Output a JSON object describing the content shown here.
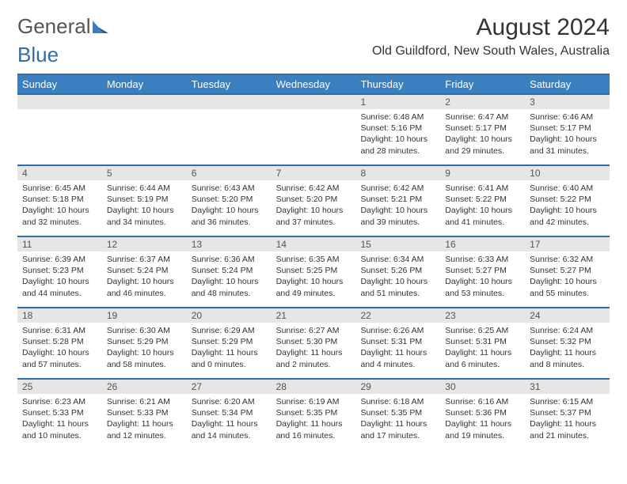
{
  "colors": {
    "accent": "#3a7fbf",
    "accent_dark": "#2f6fa8",
    "logo_gray": "#555555",
    "logo_blue": "#2f6fa8",
    "text": "#333333",
    "daynum_bg": "#e6e6e6",
    "daynum_text": "#555555",
    "bg": "#ffffff"
  },
  "logo": {
    "word1": "General",
    "word2": "Blue"
  },
  "header": {
    "month_title": "August 2024",
    "location": "Old Guildford, New South Wales, Australia"
  },
  "days_of_week": [
    "Sunday",
    "Monday",
    "Tuesday",
    "Wednesday",
    "Thursday",
    "Friday",
    "Saturday"
  ],
  "weeks": [
    [
      {
        "empty": true
      },
      {
        "empty": true
      },
      {
        "empty": true
      },
      {
        "empty": true
      },
      {
        "n": "1",
        "sunrise": "Sunrise: 6:48 AM",
        "sunset": "Sunset: 5:16 PM",
        "daylight": "Daylight: 10 hours and 28 minutes."
      },
      {
        "n": "2",
        "sunrise": "Sunrise: 6:47 AM",
        "sunset": "Sunset: 5:17 PM",
        "daylight": "Daylight: 10 hours and 29 minutes."
      },
      {
        "n": "3",
        "sunrise": "Sunrise: 6:46 AM",
        "sunset": "Sunset: 5:17 PM",
        "daylight": "Daylight: 10 hours and 31 minutes."
      }
    ],
    [
      {
        "n": "4",
        "sunrise": "Sunrise: 6:45 AM",
        "sunset": "Sunset: 5:18 PM",
        "daylight": "Daylight: 10 hours and 32 minutes."
      },
      {
        "n": "5",
        "sunrise": "Sunrise: 6:44 AM",
        "sunset": "Sunset: 5:19 PM",
        "daylight": "Daylight: 10 hours and 34 minutes."
      },
      {
        "n": "6",
        "sunrise": "Sunrise: 6:43 AM",
        "sunset": "Sunset: 5:20 PM",
        "daylight": "Daylight: 10 hours and 36 minutes."
      },
      {
        "n": "7",
        "sunrise": "Sunrise: 6:42 AM",
        "sunset": "Sunset: 5:20 PM",
        "daylight": "Daylight: 10 hours and 37 minutes."
      },
      {
        "n": "8",
        "sunrise": "Sunrise: 6:42 AM",
        "sunset": "Sunset: 5:21 PM",
        "daylight": "Daylight: 10 hours and 39 minutes."
      },
      {
        "n": "9",
        "sunrise": "Sunrise: 6:41 AM",
        "sunset": "Sunset: 5:22 PM",
        "daylight": "Daylight: 10 hours and 41 minutes."
      },
      {
        "n": "10",
        "sunrise": "Sunrise: 6:40 AM",
        "sunset": "Sunset: 5:22 PM",
        "daylight": "Daylight: 10 hours and 42 minutes."
      }
    ],
    [
      {
        "n": "11",
        "sunrise": "Sunrise: 6:39 AM",
        "sunset": "Sunset: 5:23 PM",
        "daylight": "Daylight: 10 hours and 44 minutes."
      },
      {
        "n": "12",
        "sunrise": "Sunrise: 6:37 AM",
        "sunset": "Sunset: 5:24 PM",
        "daylight": "Daylight: 10 hours and 46 minutes."
      },
      {
        "n": "13",
        "sunrise": "Sunrise: 6:36 AM",
        "sunset": "Sunset: 5:24 PM",
        "daylight": "Daylight: 10 hours and 48 minutes."
      },
      {
        "n": "14",
        "sunrise": "Sunrise: 6:35 AM",
        "sunset": "Sunset: 5:25 PM",
        "daylight": "Daylight: 10 hours and 49 minutes."
      },
      {
        "n": "15",
        "sunrise": "Sunrise: 6:34 AM",
        "sunset": "Sunset: 5:26 PM",
        "daylight": "Daylight: 10 hours and 51 minutes."
      },
      {
        "n": "16",
        "sunrise": "Sunrise: 6:33 AM",
        "sunset": "Sunset: 5:27 PM",
        "daylight": "Daylight: 10 hours and 53 minutes."
      },
      {
        "n": "17",
        "sunrise": "Sunrise: 6:32 AM",
        "sunset": "Sunset: 5:27 PM",
        "daylight": "Daylight: 10 hours and 55 minutes."
      }
    ],
    [
      {
        "n": "18",
        "sunrise": "Sunrise: 6:31 AM",
        "sunset": "Sunset: 5:28 PM",
        "daylight": "Daylight: 10 hours and 57 minutes."
      },
      {
        "n": "19",
        "sunrise": "Sunrise: 6:30 AM",
        "sunset": "Sunset: 5:29 PM",
        "daylight": "Daylight: 10 hours and 58 minutes."
      },
      {
        "n": "20",
        "sunrise": "Sunrise: 6:29 AM",
        "sunset": "Sunset: 5:29 PM",
        "daylight": "Daylight: 11 hours and 0 minutes."
      },
      {
        "n": "21",
        "sunrise": "Sunrise: 6:27 AM",
        "sunset": "Sunset: 5:30 PM",
        "daylight": "Daylight: 11 hours and 2 minutes."
      },
      {
        "n": "22",
        "sunrise": "Sunrise: 6:26 AM",
        "sunset": "Sunset: 5:31 PM",
        "daylight": "Daylight: 11 hours and 4 minutes."
      },
      {
        "n": "23",
        "sunrise": "Sunrise: 6:25 AM",
        "sunset": "Sunset: 5:31 PM",
        "daylight": "Daylight: 11 hours and 6 minutes."
      },
      {
        "n": "24",
        "sunrise": "Sunrise: 6:24 AM",
        "sunset": "Sunset: 5:32 PM",
        "daylight": "Daylight: 11 hours and 8 minutes."
      }
    ],
    [
      {
        "n": "25",
        "sunrise": "Sunrise: 6:23 AM",
        "sunset": "Sunset: 5:33 PM",
        "daylight": "Daylight: 11 hours and 10 minutes."
      },
      {
        "n": "26",
        "sunrise": "Sunrise: 6:21 AM",
        "sunset": "Sunset: 5:33 PM",
        "daylight": "Daylight: 11 hours and 12 minutes."
      },
      {
        "n": "27",
        "sunrise": "Sunrise: 6:20 AM",
        "sunset": "Sunset: 5:34 PM",
        "daylight": "Daylight: 11 hours and 14 minutes."
      },
      {
        "n": "28",
        "sunrise": "Sunrise: 6:19 AM",
        "sunset": "Sunset: 5:35 PM",
        "daylight": "Daylight: 11 hours and 16 minutes."
      },
      {
        "n": "29",
        "sunrise": "Sunrise: 6:18 AM",
        "sunset": "Sunset: 5:35 PM",
        "daylight": "Daylight: 11 hours and 17 minutes."
      },
      {
        "n": "30",
        "sunrise": "Sunrise: 6:16 AM",
        "sunset": "Sunset: 5:36 PM",
        "daylight": "Daylight: 11 hours and 19 minutes."
      },
      {
        "n": "31",
        "sunrise": "Sunrise: 6:15 AM",
        "sunset": "Sunset: 5:37 PM",
        "daylight": "Daylight: 11 hours and 21 minutes."
      }
    ]
  ]
}
